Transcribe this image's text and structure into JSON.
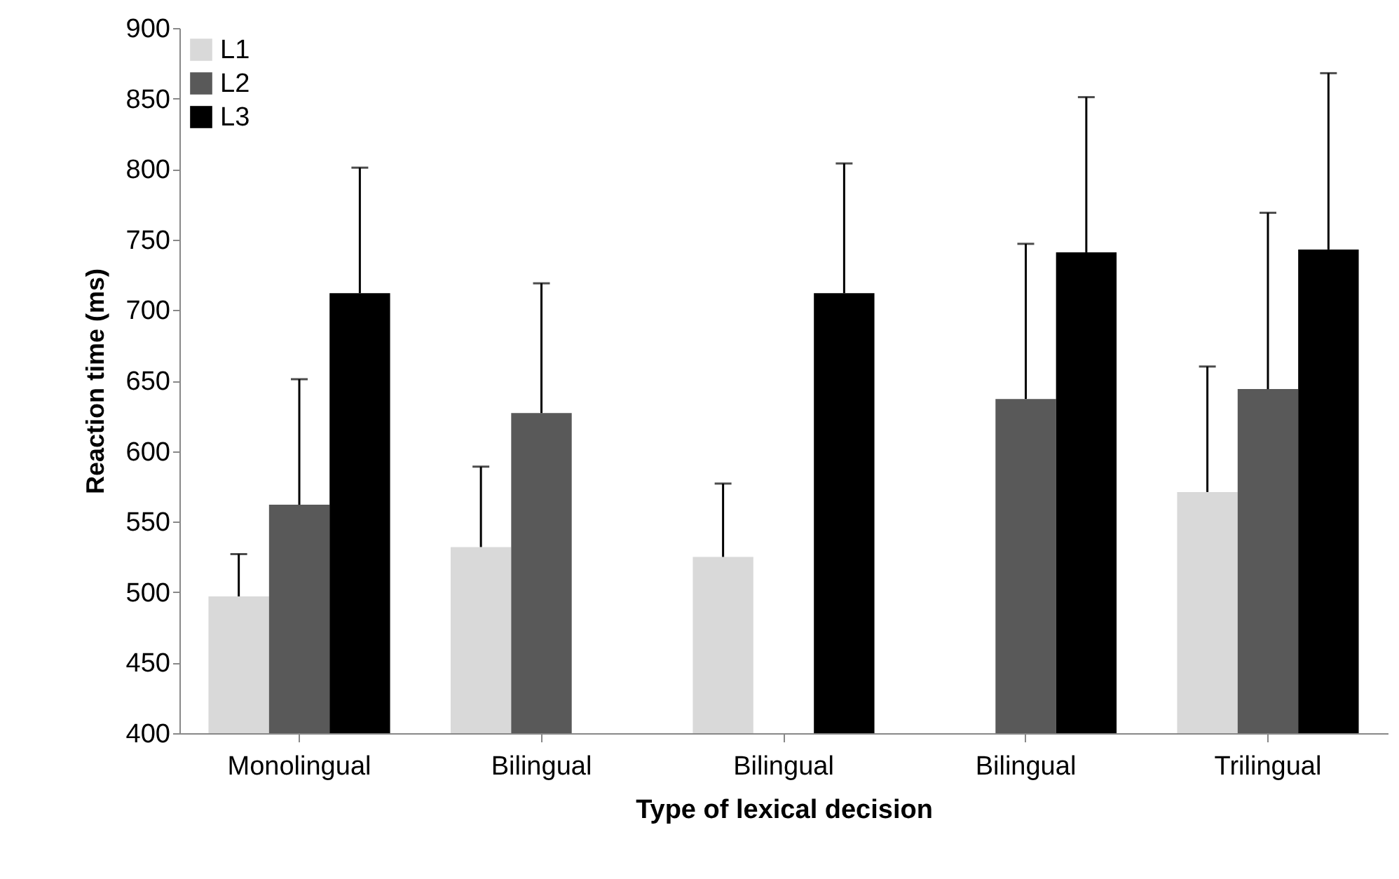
{
  "chart_data": {
    "type": "bar",
    "xlabel": "Type of lexical decision",
    "ylabel": "Reaction time (ms)",
    "categories": [
      "Monolingual",
      "Bilingual",
      "Bilingual",
      "Bilingual",
      "Trilingual"
    ],
    "series": [
      {
        "name": "L1",
        "color": "#d9d9d9",
        "values": [
          497,
          532,
          525,
          null,
          571
        ],
        "errors": [
          [
            497,
            527
          ],
          [
            532,
            589
          ],
          [
            525,
            577
          ],
          null,
          [
            571,
            660
          ]
        ]
      },
      {
        "name": "L2",
        "color": "#595959",
        "values": [
          562,
          627,
          null,
          637,
          644
        ],
        "errors": [
          [
            562,
            651
          ],
          [
            627,
            719
          ],
          null,
          [
            637,
            747
          ],
          [
            644,
            769
          ]
        ]
      },
      {
        "name": "L3",
        "color": "#000000",
        "values": [
          712,
          null,
          712,
          741,
          743
        ],
        "errors": [
          [
            712,
            801
          ],
          null,
          [
            712,
            804
          ],
          [
            741,
            851
          ],
          [
            743,
            868
          ]
        ]
      }
    ],
    "ylim": [
      400,
      900
    ],
    "yticks": [
      400,
      450,
      500,
      550,
      600,
      650,
      700,
      750,
      800,
      850,
      900
    ],
    "grid": false,
    "legend": "top left"
  }
}
